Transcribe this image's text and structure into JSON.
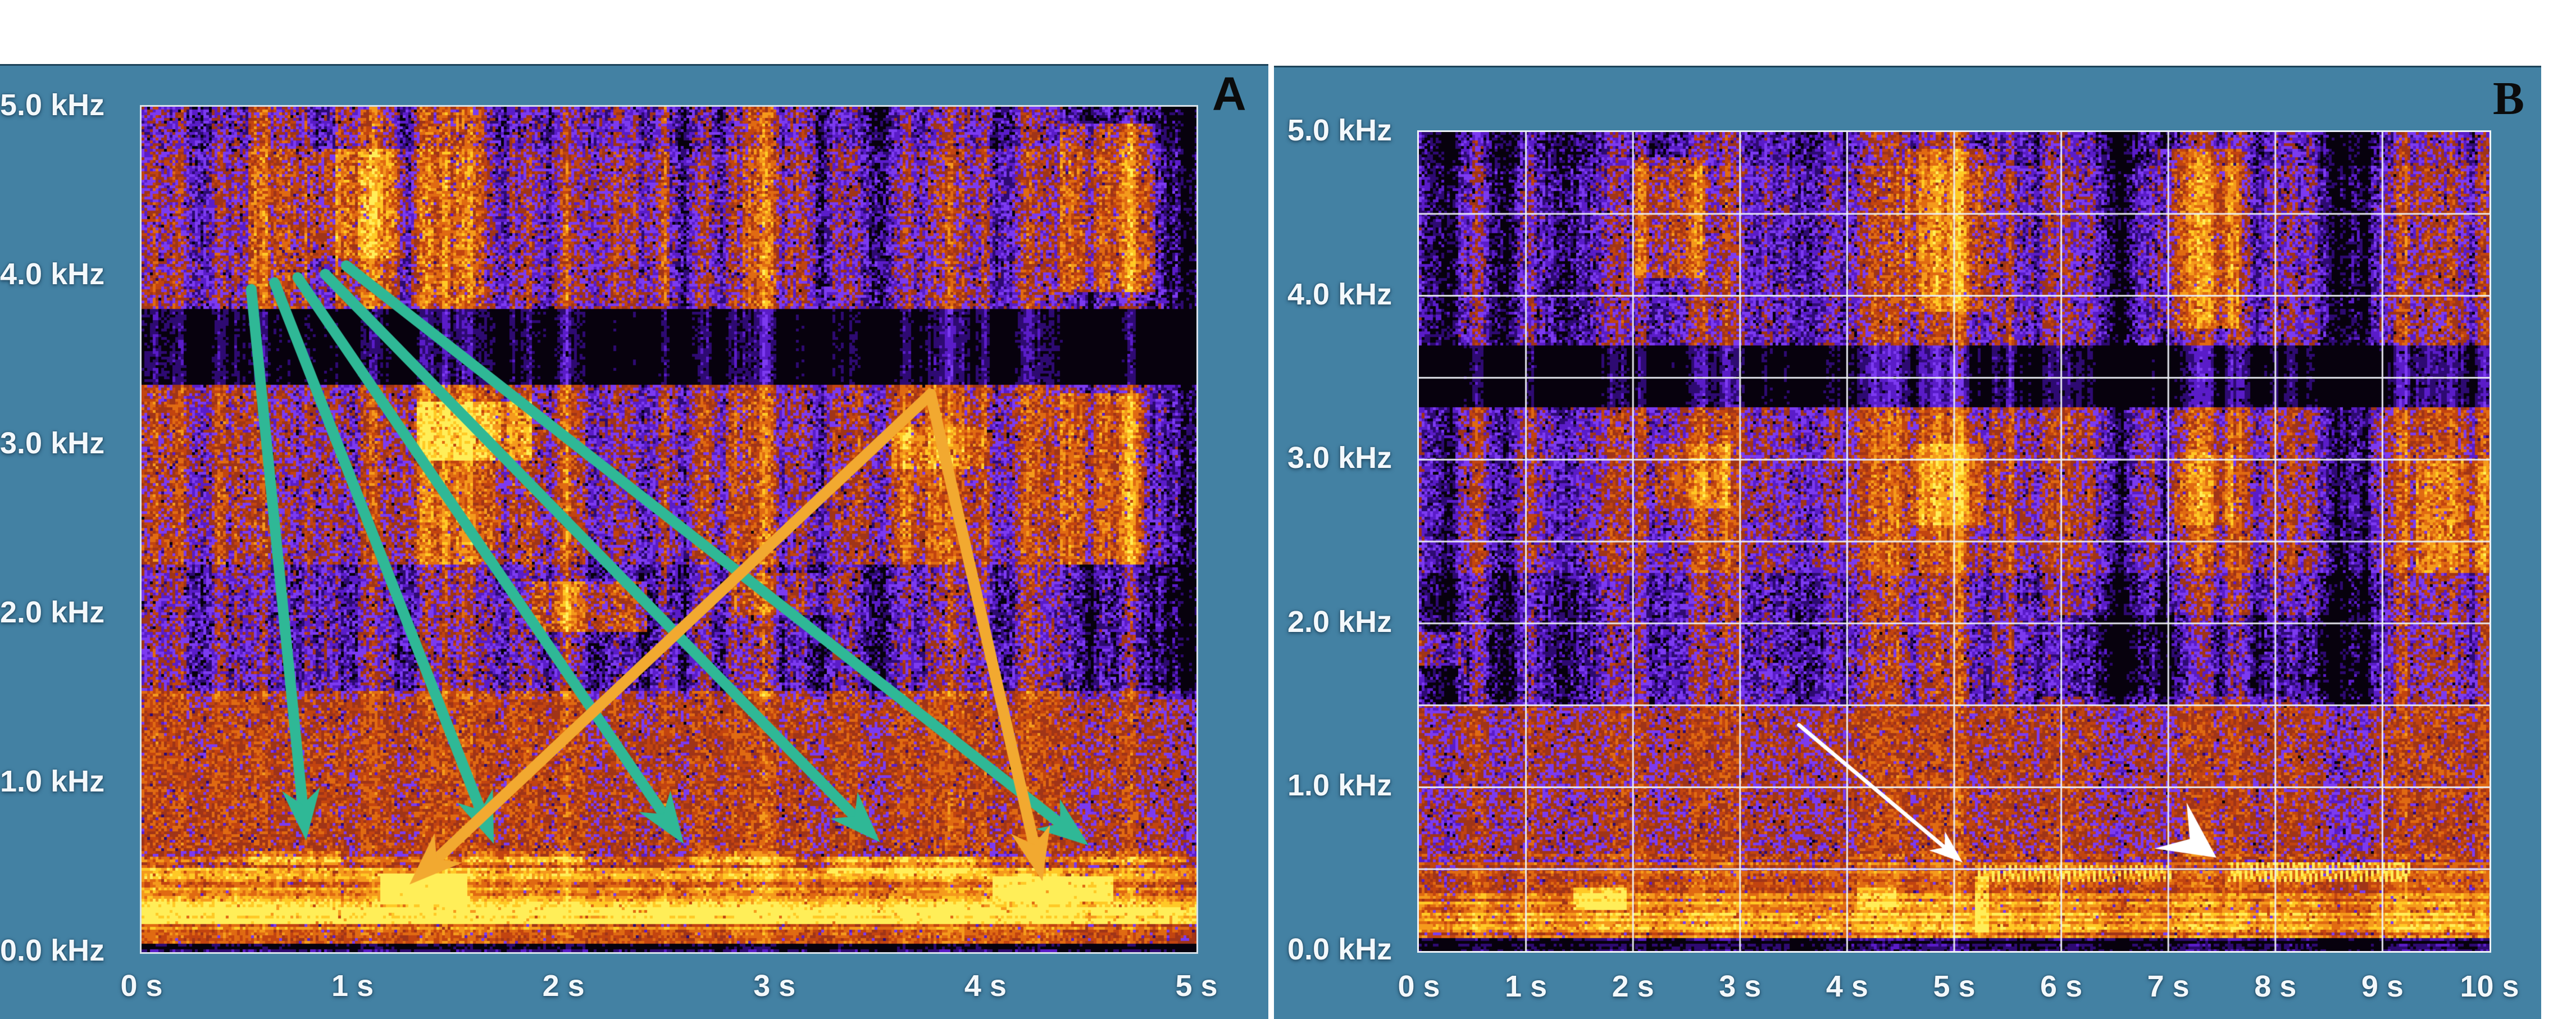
{
  "colors": {
    "page_background": "#ffffff",
    "panel_background": "#4381a3",
    "tick_text": "#f3f8fb",
    "panel_letter": "#0b0b0b",
    "grid": "#eef1f8",
    "green_arrow": "#2fb896",
    "orange_arrow": "#f2a930",
    "white_annotation": "#ffffff"
  },
  "chart_data": {
    "type": "heatmap",
    "title": "",
    "description": "Two-panel audio spectrogram figure. Panel A: 5 s spectrogram (0-5 kHz) with five green arrows fanning from high-frequency calls (~4 kHz) down to low-frequency echoes (~0.65 kHz) and an inverted-V orange arrow pair pointing to two bright low-frequency notes (~0.4 kHz). Panel B: 10 s spectrogram (0-5 kHz) with white 1 s x 0.5 kHz grid, a thin white arrow and a white arrowhead marking two dotted ~0.5 kHz call trains.",
    "colormap": [
      "#07010d",
      "#2e0a72",
      "#5a1cc8",
      "#7c3af0",
      "#a03418",
      "#c24410",
      "#e06a12",
      "#f59a1c",
      "#ffc926",
      "#ffee58"
    ],
    "panels": [
      {
        "label": "A",
        "x_axis": {
          "unit": "s",
          "min": 0,
          "max": 5,
          "tick_labels": [
            "0 s",
            "1 s",
            "2 s",
            "3 s",
            "4 s",
            "5 s"
          ]
        },
        "y_axis": {
          "unit": "kHz",
          "min": 0,
          "max": 5,
          "tick_labels": [
            "5.0 kHz",
            "4.0 kHz",
            "3.0 kHz",
            "2.0 kHz",
            "1.0 kHz",
            "0.0 kHz"
          ]
        },
        "grid": false,
        "annotations": {
          "green_arrows": {
            "color": "#2fb896",
            "pairs": [
              {
                "from": [
                  0.52,
                  3.92
                ],
                "to": [
                  0.78,
                  0.66
                ]
              },
              {
                "from": [
                  0.63,
                  3.96
                ],
                "to": [
                  1.67,
                  0.64
                ]
              },
              {
                "from": [
                  0.74,
                  3.99
                ],
                "to": [
                  2.57,
                  0.64
                ]
              },
              {
                "from": [
                  0.87,
                  4.01
                ],
                "to": [
                  3.5,
                  0.65
                ]
              },
              {
                "from": [
                  0.97,
                  4.06
                ],
                "to": [
                  4.49,
                  0.63
                ]
              }
            ]
          },
          "orange_arrow": {
            "color": "#f2a930",
            "vertex": [
              3.74,
              3.3
            ],
            "tips": [
              [
                1.27,
                0.4
              ],
              [
                4.27,
                0.42
              ]
            ]
          }
        },
        "texture": {
          "seed": 11,
          "black_band_khz": [
            3.35,
            3.8
          ],
          "bands": [
            [
              4.75,
              5.01,
              0.3,
              0.17
            ],
            [
              3.8,
              4.75,
              0.38,
              0.16
            ],
            [
              3.35,
              3.8,
              0.07,
              0.07
            ],
            [
              2.3,
              3.35,
              0.46,
              0.15
            ],
            [
              1.55,
              2.3,
              0.33,
              0.16
            ],
            [
              0.5,
              1.55,
              0.52,
              0.13
            ],
            [
              0.3,
              0.5,
              0.6,
              0.1
            ],
            [
              0.05,
              0.3,
              0.66,
              0.1
            ],
            [
              0.0,
              0.05,
              0.12,
              0.08
            ]
          ],
          "features": [
            [
              0.0,
              5.0,
              0.17,
              0.3,
              0.34
            ],
            [
              0.0,
              5.0,
              0.3,
              0.55,
              0.1
            ],
            [
              1.13,
              1.55,
              0.28,
              0.46,
              0.44
            ],
            [
              4.03,
              4.6,
              0.3,
              0.45,
              0.4
            ],
            [
              0.5,
              0.95,
              0.52,
              0.6,
              0.2
            ],
            [
              1.55,
              2.1,
              0.52,
              0.6,
              0.16
            ],
            [
              2.6,
              3.1,
              0.52,
              0.6,
              0.16
            ],
            [
              3.25,
              3.95,
              0.47,
              0.56,
              0.18
            ],
            [
              4.45,
              4.95,
              0.52,
              0.6,
              0.16
            ],
            [
              1.3,
              1.85,
              2.9,
              3.25,
              0.26
            ],
            [
              1.85,
              2.4,
              1.9,
              2.2,
              0.28
            ],
            [
              2.8,
              3.35,
              2.0,
              2.25,
              0.14
            ],
            [
              3.55,
              4.0,
              2.85,
              3.1,
              0.16
            ],
            [
              0.5,
              0.78,
              3.8,
              5.0,
              0.18
            ],
            [
              0.92,
              1.22,
              3.8,
              5.0,
              0.2
            ],
            [
              1.28,
              1.62,
              3.8,
              5.0,
              0.16
            ],
            [
              2.1,
              2.5,
              3.8,
              5.0,
              0.14
            ],
            [
              2.85,
              3.2,
              3.8,
              5.0,
              0.12
            ],
            [
              0.8,
              1.25,
              4.1,
              4.75,
              0.14
            ],
            [
              4.35,
              4.8,
              3.9,
              4.9,
              0.3
            ],
            [
              4.35,
              4.75,
              2.3,
              3.3,
              0.24
            ],
            [
              1.2,
              1.7,
              2.3,
              3.35,
              0.1
            ],
            [
              3.4,
              3.8,
              2.3,
              3.35,
              0.1
            ]
          ]
        }
      },
      {
        "label": "B",
        "x_axis": {
          "unit": "s",
          "min": 0,
          "max": 10,
          "tick_labels": [
            "0 s",
            "1 s",
            "2 s",
            "3 s",
            "4 s",
            "5 s",
            "6 s",
            "7 s",
            "8 s",
            "9 s",
            "10 s"
          ]
        },
        "y_axis": {
          "unit": "kHz",
          "min": 0,
          "max": 5,
          "tick_labels": [
            "5.0 kHz",
            "4.0 kHz",
            "3.0 kHz",
            "2.0 kHz",
            "1.0 kHz",
            "0.0 kHz"
          ]
        },
        "grid": true,
        "grid_spacing": {
          "x_s": 1,
          "y_khz": 0.5
        },
        "annotations": {
          "white_arrow": {
            "color": "#ffffff",
            "from": [
              3.55,
              1.38
            ],
            "to": [
              5.08,
              0.54
            ]
          },
          "white_arrowhead": {
            "color": "#ffffff",
            "tip": [
              7.45,
              0.57
            ],
            "angle_deg": 35
          }
        },
        "texture": {
          "seed": 29,
          "black_band_khz": [
            3.32,
            3.7
          ],
          "bands": [
            [
              4.8,
              5.01,
              0.26,
              0.15
            ],
            [
              3.7,
              4.8,
              0.33,
              0.15
            ],
            [
              3.32,
              3.7,
              0.06,
              0.06
            ],
            [
              2.3,
              3.32,
              0.42,
              0.14
            ],
            [
              1.5,
              2.3,
              0.3,
              0.15
            ],
            [
              0.55,
              1.5,
              0.47,
              0.13
            ],
            [
              0.3,
              0.55,
              0.55,
              0.1
            ],
            [
              0.08,
              0.3,
              0.6,
              0.1
            ],
            [
              0.0,
              0.08,
              0.1,
              0.07
            ]
          ],
          "features": [
            [
              0.0,
              10.0,
              0.12,
              0.3,
              0.18
            ],
            [
              0.0,
              10.0,
              0.3,
              0.42,
              0.08
            ],
            [
              5.2,
              7.05,
              0.42,
              0.52,
              0.42,
              "dots"
            ],
            [
              7.55,
              9.25,
              0.42,
              0.55,
              0.52,
              "dots"
            ],
            [
              1.45,
              1.95,
              0.25,
              0.38,
              0.3
            ],
            [
              4.1,
              4.45,
              0.25,
              0.38,
              0.18
            ],
            [
              5.2,
              5.32,
              0.1,
              0.45,
              0.25
            ],
            [
              5.8,
              8.6,
              1.55,
              2.05,
              -0.12
            ],
            [
              2.0,
              2.65,
              4.1,
              4.85,
              0.22
            ],
            [
              4.55,
              5.35,
              3.9,
              4.9,
              0.2
            ],
            [
              6.9,
              7.65,
              3.8,
              4.9,
              0.22
            ],
            [
              4.6,
              5.3,
              2.6,
              3.1,
              0.18
            ],
            [
              2.2,
              2.9,
              2.7,
              3.1,
              0.16
            ],
            [
              7.0,
              7.6,
              2.6,
              3.05,
              0.14
            ],
            [
              9.3,
              10.0,
              2.3,
              3.0,
              0.12
            ],
            [
              0.0,
              0.4,
              1.75,
              1.95,
              0.22
            ]
          ]
        }
      }
    ]
  }
}
